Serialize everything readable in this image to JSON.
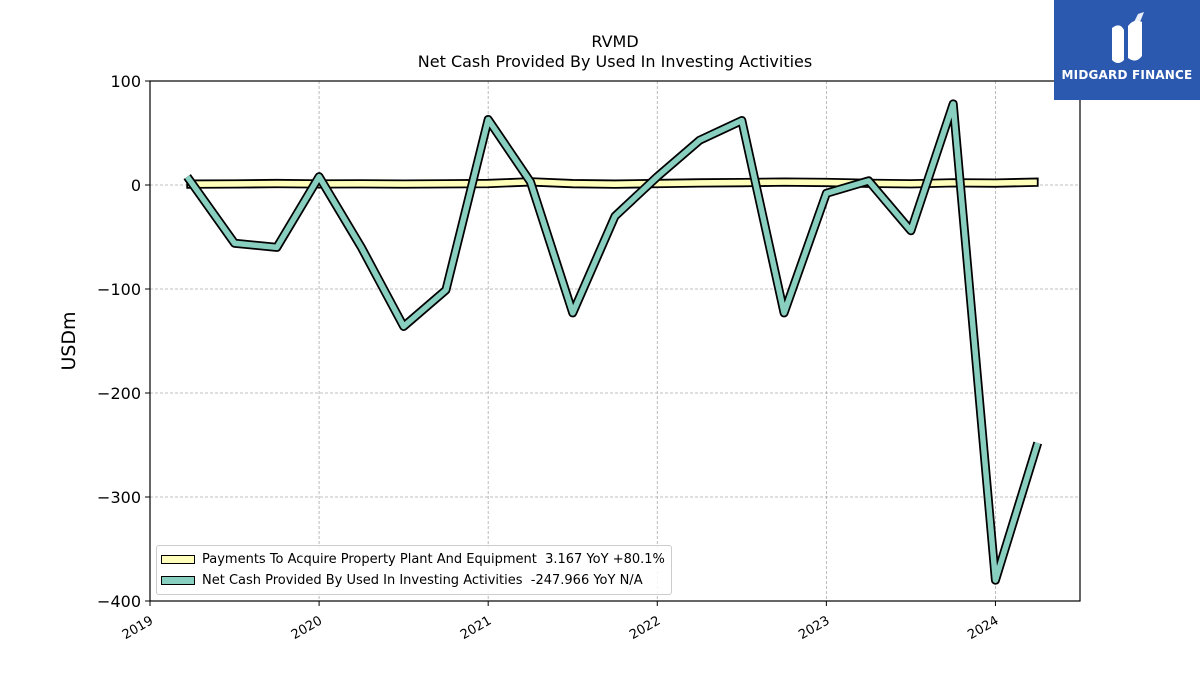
{
  "chart_data": {
    "type": "line",
    "title": "RVMD",
    "subtitle": "Net Cash Provided By Used In Investing Activities",
    "ylabel": "USDm",
    "xlabel": "",
    "ylim": [
      -400,
      100
    ],
    "yticks": [
      100,
      0,
      -100,
      -200,
      -300,
      -400
    ],
    "ytick_labels": [
      "100",
      "0",
      "−100",
      "−200",
      "−300",
      "−400"
    ],
    "xlim": [
      2019.0,
      2024.5
    ],
    "xticks": [
      2019,
      2020,
      2021,
      2022,
      2023,
      2024
    ],
    "xtick_labels": [
      "2019",
      "2020",
      "2021",
      "2022",
      "2023",
      "2024"
    ],
    "grid": true,
    "legend_position": "lower-left",
    "series": [
      {
        "name": "Payments To Acquire Property Plant And Equipment",
        "legend_label": "Payments To Acquire Property Plant And Equipment  3.167 YoY +80.1%",
        "style": "band",
        "color": "#ffffbb",
        "x": [
          2019.22,
          2019.5,
          2019.75,
          2020.0,
          2020.25,
          2020.5,
          2020.75,
          2021.0,
          2021.25,
          2021.5,
          2021.75,
          2022.0,
          2022.25,
          2022.5,
          2022.75,
          2023.0,
          2023.25,
          2023.5,
          2023.75,
          2024.0,
          2024.25
        ],
        "values": [
          1.3,
          1.5,
          1.9,
          1.5,
          1.6,
          1.4,
          1.6,
          1.9,
          3.5,
          1.8,
          1.3,
          1.9,
          2.5,
          2.8,
          3.3,
          2.9,
          2.1,
          1.6,
          2.6,
          2.3,
          3.2
        ]
      },
      {
        "name": "Net Cash Provided By Used In Investing Activities",
        "legend_label": "Net Cash Provided By Used In Investing Activities  -247.966 YoY N/A",
        "style": "line",
        "color": "#88cfc0",
        "x": [
          2019.22,
          2019.5,
          2019.75,
          2020.0,
          2020.25,
          2020.5,
          2020.75,
          2021.0,
          2021.25,
          2021.5,
          2021.75,
          2022.0,
          2022.25,
          2022.5,
          2022.75,
          2023.0,
          2023.25,
          2023.5,
          2023.75,
          2024.0,
          2024.25
        ],
        "values": [
          8,
          -56,
          -60,
          8,
          -60,
          -136,
          -101,
          63,
          3,
          -123,
          -30,
          8,
          43,
          62,
          -123,
          -8,
          4,
          -44,
          78,
          -380,
          -248
        ]
      }
    ]
  },
  "logo": {
    "text": "MIDGARD FINANCE",
    "background": "#2b59b0"
  }
}
